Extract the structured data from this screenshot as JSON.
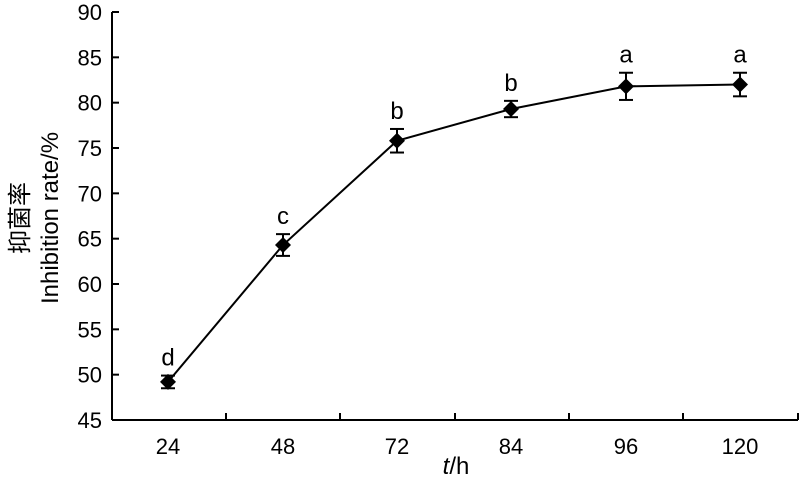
{
  "chart_data": {
    "type": "line",
    "categories": [
      "24",
      "48",
      "72",
      "84",
      "96",
      "120"
    ],
    "series": [
      {
        "values": [
          49.2,
          64.3,
          75.8,
          79.3,
          81.8,
          82.0
        ],
        "errors": [
          0.7,
          1.2,
          1.3,
          0.9,
          1.5,
          1.3
        ],
        "labels": [
          "d",
          "c",
          "b",
          "b",
          "a",
          "a"
        ]
      }
    ],
    "xlabel": "t/h",
    "xlabel_italic": "t",
    "xlabel_rest": "/h",
    "ylabel": "Inhibition rate/%",
    "ylabel_cn": "抑菌率",
    "ylim": [
      45,
      90
    ],
    "yticks": [
      45,
      50,
      55,
      60,
      65,
      70,
      75,
      80,
      85,
      90
    ],
    "grid": false,
    "marker": "diamond",
    "color": "#000000"
  }
}
